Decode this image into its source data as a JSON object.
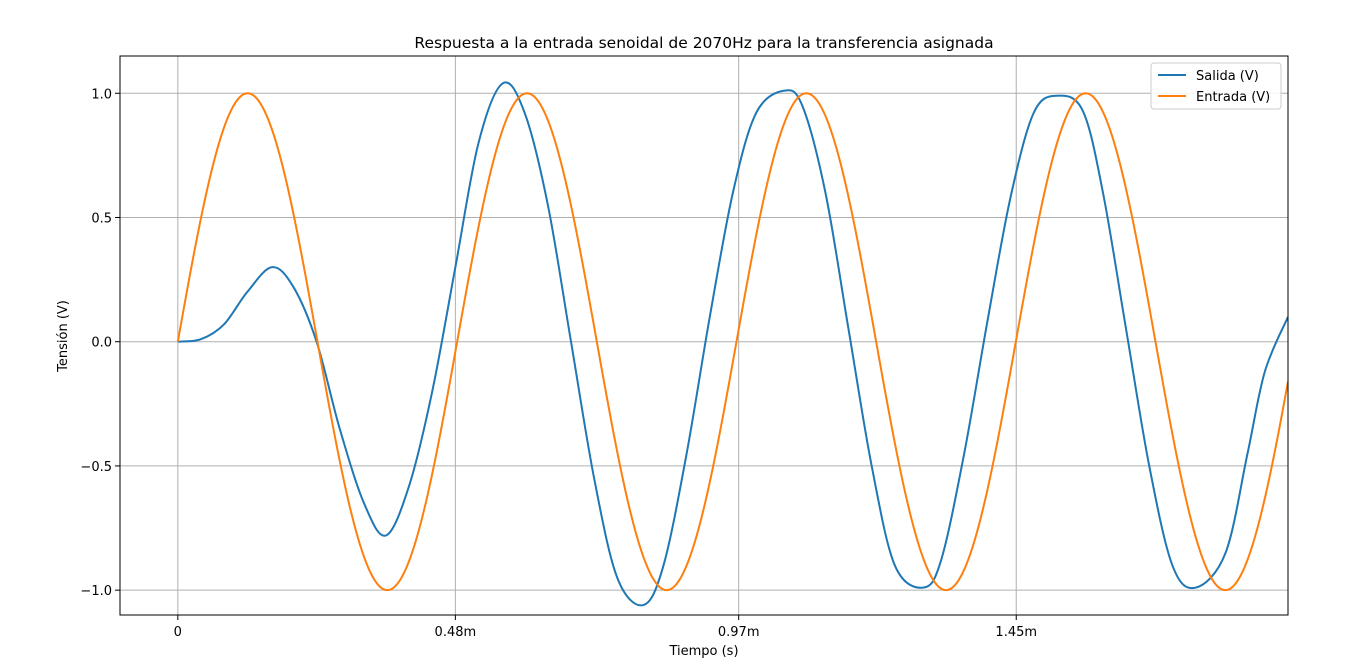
{
  "chart_data": {
    "type": "line",
    "title": "Respuesta a la entrada senoidal de 2070Hz para la transferencia asignada",
    "xlabel": "Tiempo (s)",
    "ylabel": "Tensión (V)",
    "xlim": [
      -0.0001,
      0.00192
    ],
    "ylim": [
      -1.1,
      1.15
    ],
    "xticks": [
      0,
      0.00048,
      0.00097,
      0.00145
    ],
    "xticklabels": [
      "0",
      "0.48m",
      "0.97m",
      "1.45m"
    ],
    "yticks": [
      -1.0,
      -0.5,
      0.0,
      0.5,
      1.0
    ],
    "yticklabels": [
      "−1.0",
      "−0.5",
      "0.0",
      "0.5",
      "1.0"
    ],
    "grid": true,
    "legend_position": "upper right",
    "series": [
      {
        "name": "Salida (V)",
        "color": "#1f77b4",
        "x": [
          0,
          4e-05,
          8e-05,
          0.00012,
          0.000163,
          0.0002,
          0.00024,
          0.00028,
          0.000322,
          0.00036,
          0.0004,
          0.00044,
          0.00048,
          0.00052,
          0.000562,
          0.0006,
          0.00064,
          0.00068,
          0.00072,
          0.00076,
          0.000805,
          0.00084,
          0.00088,
          0.00092,
          0.00096,
          0.001,
          0.001048,
          0.00108,
          0.00112,
          0.00116,
          0.0012,
          0.00124,
          0.001289,
          0.00132,
          0.00136,
          0.0014,
          0.00144,
          0.00148,
          0.00152,
          0.001565,
          0.0016,
          0.00164,
          0.00168,
          0.00172,
          0.00176,
          0.001812,
          0.00185,
          0.00188,
          0.00192
        ],
        "y": [
          0.0,
          0.01,
          0.07,
          0.2,
          0.3,
          0.22,
          0.0,
          -0.35,
          -0.65,
          -0.78,
          -0.58,
          -0.2,
          0.3,
          0.8,
          1.04,
          0.92,
          0.55,
          0.0,
          -0.55,
          -0.95,
          -1.06,
          -0.9,
          -0.45,
          0.1,
          0.6,
          0.92,
          1.01,
          0.95,
          0.6,
          0.05,
          -0.5,
          -0.9,
          -0.99,
          -0.88,
          -0.45,
          0.08,
          0.58,
          0.92,
          0.99,
          0.93,
          0.6,
          0.05,
          -0.5,
          -0.9,
          -0.99,
          -0.85,
          -0.45,
          -0.12,
          0.1
        ]
      },
      {
        "name": "Entrada (V)",
        "color": "#ff7f0e",
        "frequency_hz": 2070,
        "amplitude": 1.0
      }
    ]
  },
  "legend": {
    "items": [
      "Salida (V)",
      "Entrada (V)"
    ]
  }
}
